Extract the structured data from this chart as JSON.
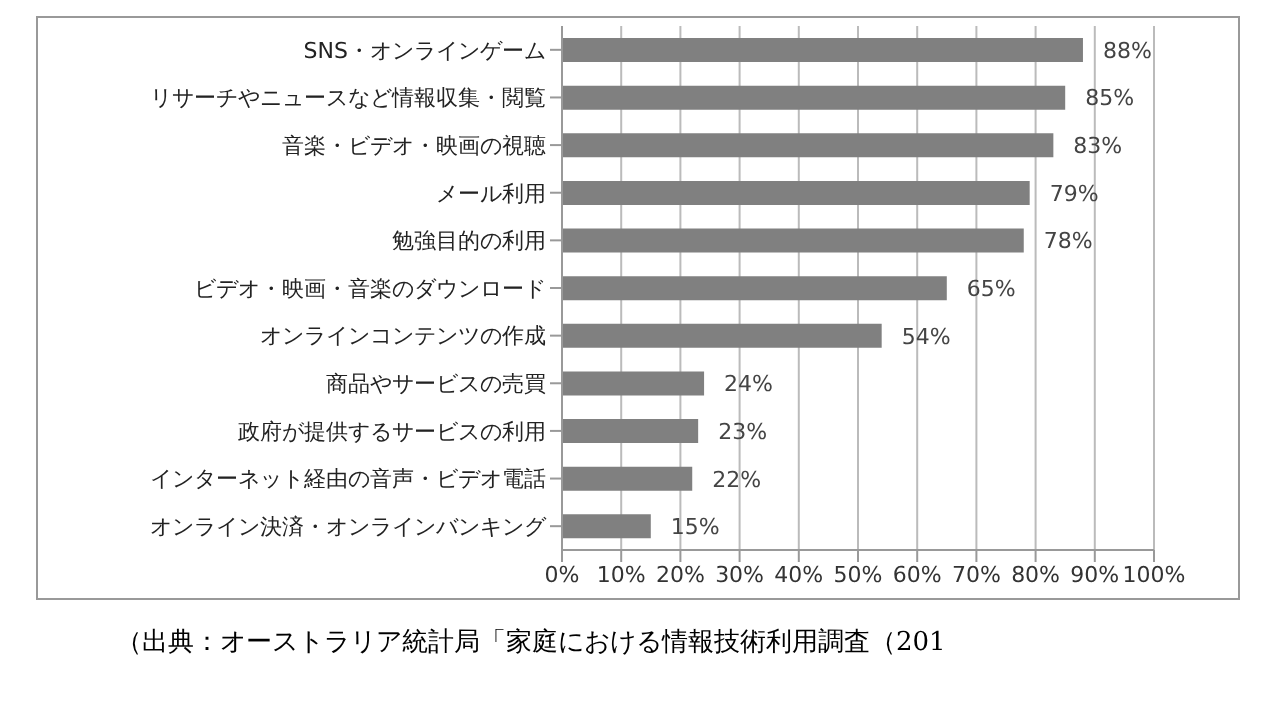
{
  "chart_data": {
    "type": "bar",
    "orientation": "horizontal",
    "categories": [
      "SNS・オンラインゲーム",
      "リサーチやニュースなど情報収集・閲覧",
      "音楽・ビデオ・映画の視聴",
      "メール利用",
      "勉強目的の利用",
      "ビデオ・映画・音楽のダウンロード",
      "オンラインコンテンツの作成",
      "商品やサービスの売買",
      "政府が提供するサービスの利用",
      "インターネット経由の音声・ビデオ電話",
      "オンライン決済・オンラインバンキング"
    ],
    "values": [
      88,
      85,
      83,
      79,
      78,
      65,
      54,
      24,
      23,
      22,
      15
    ],
    "value_labels": [
      "88%",
      "85%",
      "83%",
      "79%",
      "78%",
      "65%",
      "54%",
      "24%",
      "23%",
      "22%",
      "15%"
    ],
    "color": "#808080",
    "xlim": [
      0,
      100
    ],
    "xticks": [
      {
        "value": 0,
        "label": "0%"
      },
      {
        "value": 10,
        "label": "10%"
      },
      {
        "value": 20,
        "label": "20%"
      },
      {
        "value": 30,
        "label": "30%"
      },
      {
        "value": 40,
        "label": "40%"
      },
      {
        "value": 50,
        "label": "50%"
      },
      {
        "value": 60,
        "label": "60%"
      },
      {
        "value": 70,
        "label": "70%"
      },
      {
        "value": 80,
        "label": "80%"
      },
      {
        "value": 90,
        "label": "90%"
      },
      {
        "value": 100,
        "label": "100%"
      }
    ],
    "grid": "x",
    "legend": false,
    "annotations": [
      "（出典：オーストラリア統計局「家庭における情報技術利用調査（201"
    ]
  }
}
